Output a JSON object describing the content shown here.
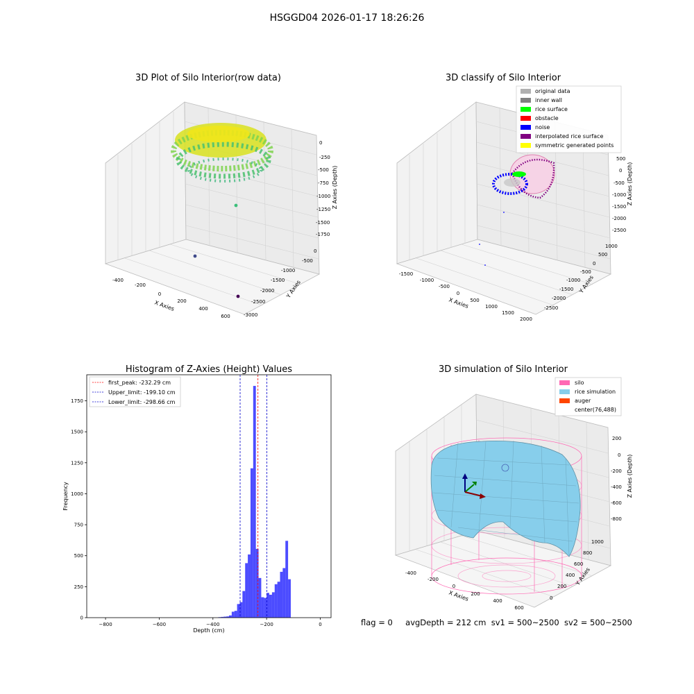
{
  "suptitle": "HSGGD04 2026-01-17 18:26:26",
  "footer": {
    "flag": "flag = 0",
    "avg_depth": "avgDepth = 212 cm",
    "sv1": "sv1 = 500~2500",
    "sv2": "sv2 = 500~2500"
  },
  "chart_data": [
    {
      "type": "scatter",
      "subtype": "3d",
      "title": "3D Plot of Silo Interior(row data)",
      "xlabel": "X Axies",
      "ylabel": "Y Axies",
      "zlabel": "Z Axies (Depth)",
      "x_ticks": [
        "-400",
        "-200",
        "0",
        "200",
        "400",
        "600"
      ],
      "y_ticks": [
        "0",
        "-500",
        "-1000",
        "-1500",
        "-2000",
        "-2500",
        "-3000"
      ],
      "z_ticks": [
        "0",
        "-250",
        "-500",
        "-750",
        "-1000",
        "-1250",
        "-1500",
        "-1750"
      ],
      "colormap": "viridis (colored by depth)",
      "outlier_points": [
        {
          "z": -1200,
          "color": "#3bbf7a"
        },
        {
          "z": -1750,
          "color": "#3f4a8a"
        },
        {
          "z": -1850,
          "color": "#440154"
        }
      ]
    },
    {
      "type": "scatter",
      "subtype": "3d",
      "title": "3D classify of Silo Interior",
      "xlabel": "X Axies",
      "ylabel": "Y Axies",
      "zlabel": "Z Axies (Depth)",
      "x_ticks": [
        "-1500",
        "-1000",
        "-500",
        "0",
        "500",
        "1000",
        "1500",
        "2000"
      ],
      "y_ticks": [
        "1000",
        "500",
        "0",
        "-500",
        "-1000",
        "-1500",
        "-2000",
        "-2500"
      ],
      "z_ticks": [
        "500",
        "0",
        "-500",
        "-1000",
        "-1500",
        "-2000",
        "-2500"
      ],
      "legend_position": "top-right",
      "legend": [
        {
          "label": "original data",
          "color": "#b0b0b0"
        },
        {
          "label": "inner wall",
          "color": "#808080"
        },
        {
          "label": "rice surface",
          "color": "#00ff00"
        },
        {
          "label": "obstacle",
          "color": "#ff0000"
        },
        {
          "label": "noise",
          "color": "#0000ff"
        },
        {
          "label": "interpolated rice surface",
          "color": "#800080"
        },
        {
          "label": "symmetric generated points",
          "color": "#ffff00"
        }
      ]
    },
    {
      "type": "bar",
      "subtype": "histogram",
      "title": "Histogram of Z-Axies (Height) Values",
      "xlabel": "Depth (cm)",
      "ylabel": "Frequency",
      "xlim": [
        -870,
        40
      ],
      "ylim": [
        0,
        1960
      ],
      "bin_width": 10,
      "color": "#0000ff",
      "x_ticks": [
        -800,
        -600,
        -400,
        -200,
        0
      ],
      "y_ticks": [
        0,
        250,
        500,
        750,
        1000,
        1250,
        1500,
        1750
      ],
      "bins": [
        {
          "x": -380,
          "value": 4
        },
        {
          "x": -370,
          "value": 6
        },
        {
          "x": -360,
          "value": 8
        },
        {
          "x": -350,
          "value": 10
        },
        {
          "x": -340,
          "value": 18
        },
        {
          "x": -330,
          "value": 48
        },
        {
          "x": -320,
          "value": 55
        },
        {
          "x": -310,
          "value": 110
        },
        {
          "x": -300,
          "value": 125
        },
        {
          "x": -290,
          "value": 215
        },
        {
          "x": -280,
          "value": 440
        },
        {
          "x": -270,
          "value": 510
        },
        {
          "x": -260,
          "value": 1205
        },
        {
          "x": -250,
          "value": 1870
        },
        {
          "x": -240,
          "value": 555
        },
        {
          "x": -230,
          "value": 320
        },
        {
          "x": -220,
          "value": 165
        },
        {
          "x": -210,
          "value": 160
        },
        {
          "x": -200,
          "value": 200
        },
        {
          "x": -190,
          "value": 185
        },
        {
          "x": -180,
          "value": 205
        },
        {
          "x": -170,
          "value": 270
        },
        {
          "x": -160,
          "value": 290
        },
        {
          "x": -150,
          "value": 370
        },
        {
          "x": -140,
          "value": 400
        },
        {
          "x": -130,
          "value": 620
        },
        {
          "x": -120,
          "value": 310
        }
      ],
      "vlines": [
        {
          "x": -232.29,
          "color": "#ff0000",
          "style": "dashed"
        },
        {
          "x": -199.1,
          "color": "#0000cc",
          "style": "dashed"
        },
        {
          "x": -298.66,
          "color": "#0000cc",
          "style": "dashed"
        }
      ],
      "legend_position": "top-left",
      "legend": [
        {
          "label": "first_peak: -232.29 cm",
          "color": "#ff0000"
        },
        {
          "label": "Upper_limit: -199.10 cm",
          "color": "#0000cc"
        },
        {
          "label": "Lower_limit: -298.66 cm",
          "color": "#0000cc"
        }
      ]
    },
    {
      "type": "area",
      "subtype": "3d surface",
      "title": "3D simulation of Silo Interior",
      "xlabel": "X Axies",
      "ylabel": "Y Axies",
      "zlabel": "Z Axies (Depth)",
      "x_ticks": [
        "-400",
        "-200",
        "0",
        "200",
        "400",
        "600"
      ],
      "y_ticks": [
        "0",
        "200",
        "400",
        "600",
        "800",
        "1000"
      ],
      "z_ticks": [
        "200",
        "0",
        "-200",
        "-400",
        "-600",
        "-800"
      ],
      "legend_position": "top-right",
      "legend": [
        {
          "label": "silo",
          "color": "#ff69b4"
        },
        {
          "label": "rice simulation",
          "color": "#87ceeb"
        },
        {
          "label": "auger",
          "color": "#ff4500"
        },
        {
          "label": "center(76,488)",
          "color": ""
        }
      ]
    }
  ]
}
